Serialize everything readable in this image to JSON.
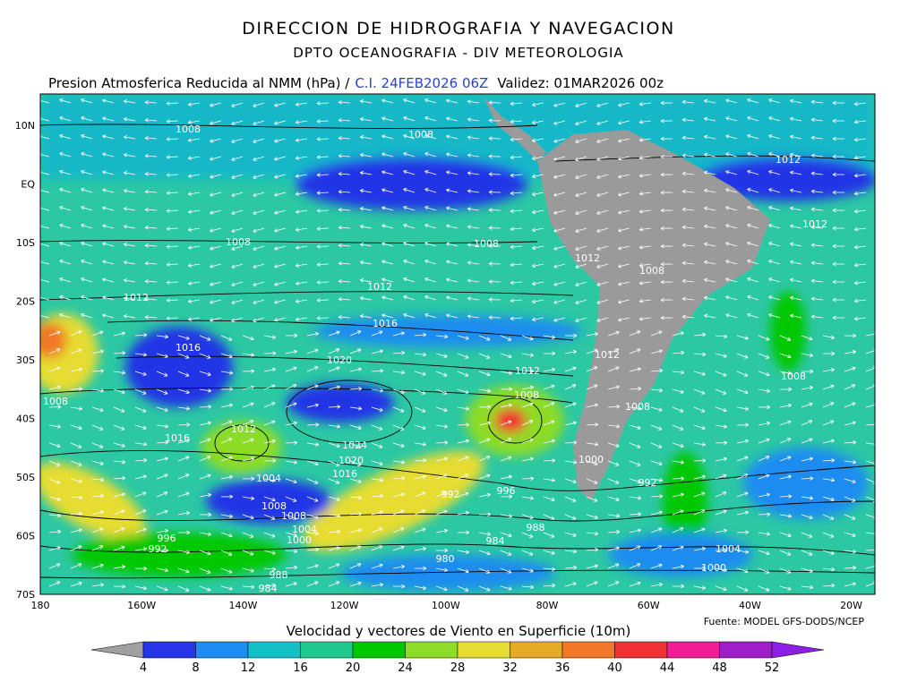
{
  "header": {
    "title": "DIRECCION DE HIDROGRAFIA Y NAVEGACION",
    "subtitle": "DPTO OCEANOGRAFIA - DIV METEOROLOGIA",
    "product": "Presion Atmosferica Reducida al NMM (hPa) /",
    "init": "C.I. 24FEB2026 06Z",
    "valid": "Validez: 01MAR2026 00z"
  },
  "map": {
    "lat_labels": [
      "10N",
      "EQ",
      "10S",
      "20S",
      "30S",
      "40S",
      "50S",
      "60S",
      "70S"
    ],
    "lon_labels": [
      "180",
      "160W",
      "140W",
      "120W",
      "100W",
      "80W",
      "60W",
      "40W",
      "20W"
    ],
    "isobar_labels": [
      1008,
      1008,
      1012,
      1012,
      1008,
      1008,
      1012,
      1008,
      1012,
      1012,
      1016,
      1016,
      1020,
      1012,
      1012,
      1008,
      1008,
      1008,
      1008,
      1016,
      1012,
      1024,
      1020,
      1016,
      1004,
      1000,
      992,
      996,
      992,
      1008,
      1008,
      1004,
      1000,
      996,
      992,
      988,
      984,
      980,
      1004,
      1000,
      988,
      984
    ]
  },
  "footer": {
    "source": "Fuente: MODEL GFS-DODS/NCEP"
  },
  "colorbar": {
    "title": "Velocidad y vectores de Viento en Superficie (10m)",
    "ticks": [
      4,
      8,
      12,
      16,
      20,
      24,
      28,
      32,
      36,
      40,
      44,
      48,
      52
    ],
    "colors": [
      "#a0a0a0",
      "#2436e6",
      "#1e8cf0",
      "#14c0c8",
      "#20c890",
      "#00c800",
      "#8cdc28",
      "#e6dc32",
      "#e6aa28",
      "#f07828",
      "#f03232",
      "#f01e96",
      "#a01ec8",
      "#8c1ee6"
    ]
  }
}
